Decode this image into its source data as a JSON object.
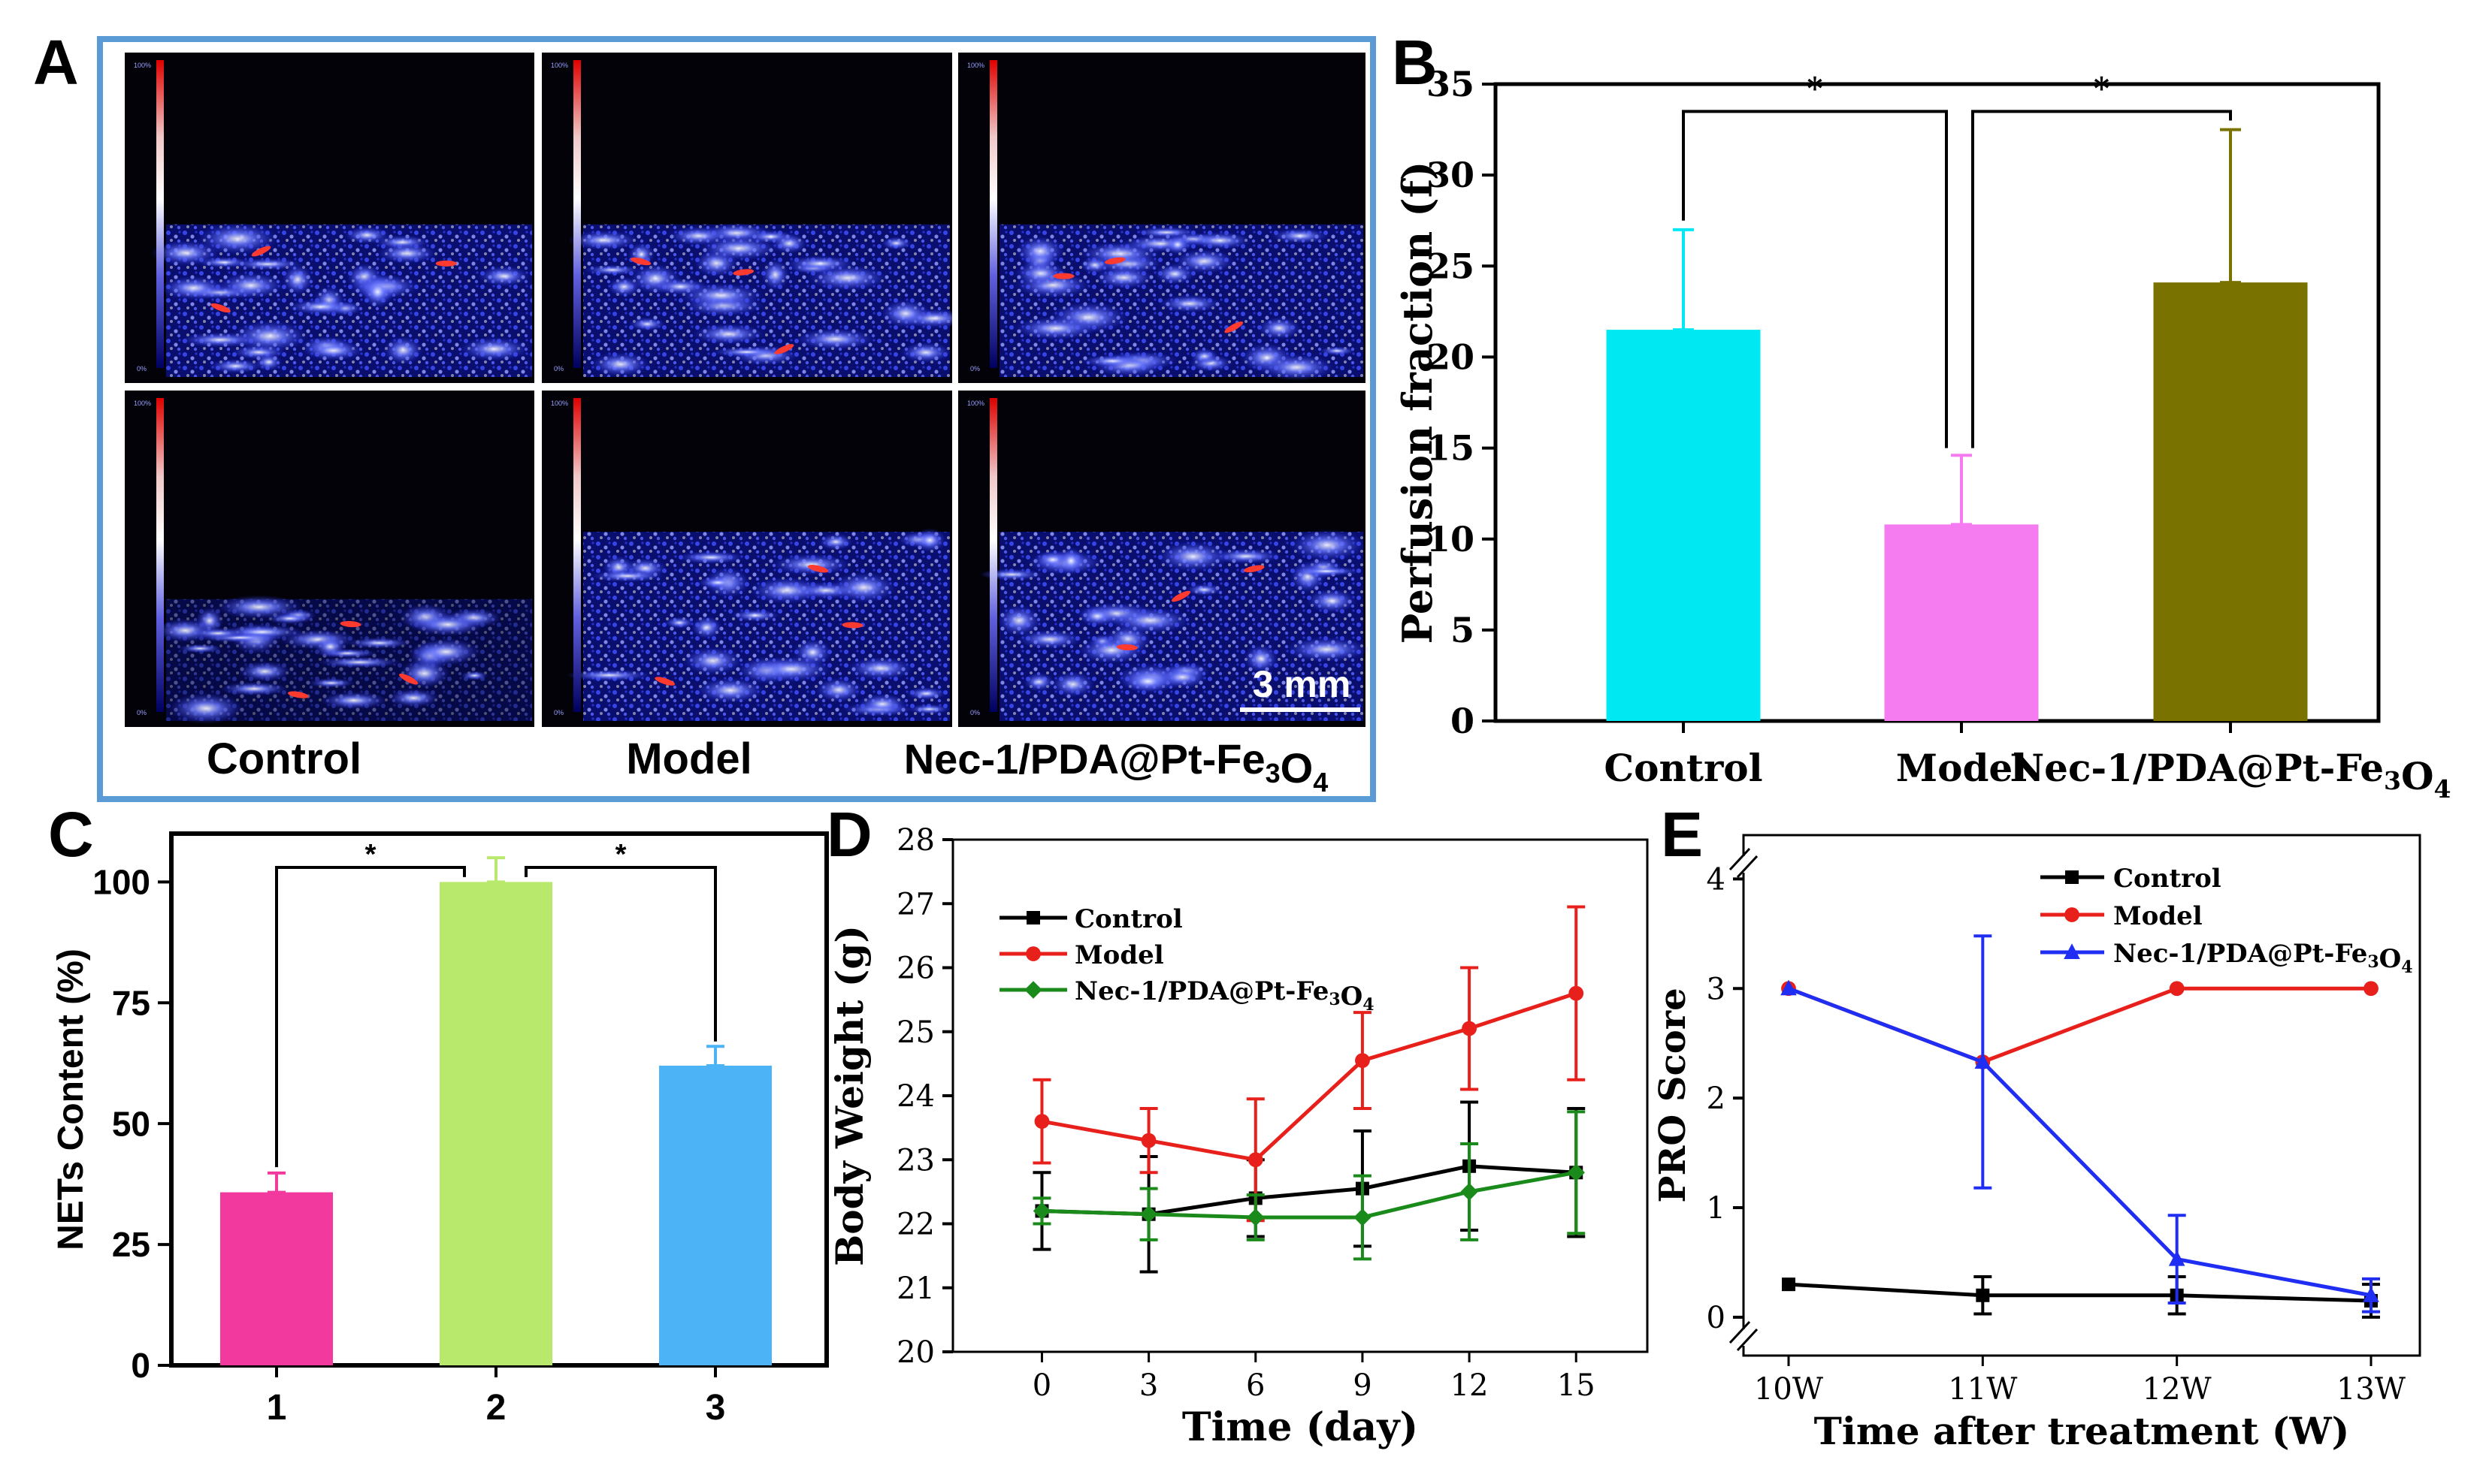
{
  "panel_letters": [
    "A",
    "B",
    "C",
    "D",
    "E"
  ],
  "panelA": {
    "column_labels": [
      "Control",
      "Model",
      "Nec-1/PDA@Pt-Fe3O4"
    ],
    "scale_bar": "3 mm",
    "colorbar_top": "100%",
    "colorbar_bottom": "0%"
  },
  "chart_data": [
    {
      "panel": "B",
      "type": "bar",
      "categories": [
        "Control",
        "Model",
        "Nec-1/PDA@Pt-Fe3O4"
      ],
      "values": [
        21.5,
        10.8,
        24.1
      ],
      "errors": [
        5.5,
        3.8,
        8.4
      ],
      "colors": [
        "#00e8f2",
        "#f47cf0",
        "#7a7200"
      ],
      "ylabel": "Perfusion fraction (f)",
      "xlabel": "",
      "ylim": [
        0,
        35
      ],
      "yticks": [
        0,
        5,
        10,
        15,
        20,
        25,
        30,
        35
      ],
      "significance": [
        {
          "from": 0,
          "to": 1,
          "label": "*"
        },
        {
          "from": 1,
          "to": 2,
          "label": "*"
        }
      ]
    },
    {
      "panel": "C",
      "type": "bar",
      "categories": [
        "1",
        "2",
        "3"
      ],
      "values": [
        35.8,
        100,
        62
      ],
      "errors": [
        4,
        5,
        4
      ],
      "colors": [
        "#f2399e",
        "#b8e96c",
        "#4db3f7"
      ],
      "ylabel": "NETs Content (%)",
      "xlabel": "",
      "ylim": [
        0,
        110
      ],
      "yticks": [
        0,
        25,
        50,
        75,
        100
      ],
      "significance": [
        {
          "from": 0,
          "to": 1,
          "label": "*"
        },
        {
          "from": 1,
          "to": 2,
          "label": "*"
        }
      ]
    },
    {
      "panel": "D",
      "type": "line",
      "x": [
        0,
        3,
        6,
        9,
        12,
        15
      ],
      "xlabel": "Time (day)",
      "ylabel": "Body Weight (g)",
      "xlim": [
        -2.5,
        17
      ],
      "ylim": [
        20,
        28
      ],
      "yticks": [
        20,
        21,
        22,
        23,
        24,
        25,
        26,
        27,
        28
      ],
      "xticks": [
        0,
        3,
        6,
        9,
        12,
        15
      ],
      "series": [
        {
          "name": "Control",
          "color": "#000000",
          "marker": "square",
          "values": [
            22.2,
            22.15,
            22.4,
            22.55,
            22.9,
            22.8
          ],
          "errors": [
            0.6,
            0.9,
            0.6,
            0.9,
            1.0,
            1.0
          ]
        },
        {
          "name": "Model",
          "color": "#e8201c",
          "marker": "circle",
          "values": [
            23.6,
            23.3,
            23.0,
            24.55,
            25.05,
            25.6
          ],
          "errors": [
            0.65,
            0.5,
            0.95,
            0.75,
            0.95,
            1.35
          ]
        },
        {
          "name": "Nec-1/PDA@Pt-Fe3O4",
          "color": "#1a8a1a",
          "marker": "diamond",
          "values": [
            22.2,
            22.15,
            22.1,
            22.1,
            22.5,
            22.8
          ],
          "errors": [
            0.2,
            0.4,
            0.35,
            0.65,
            0.75,
            0.95
          ]
        }
      ]
    },
    {
      "panel": "E",
      "type": "line",
      "categories": [
        "10W",
        "11W",
        "12W",
        "13W"
      ],
      "xlabel": "Time after treatment (W)",
      "ylabel": "PRO Score",
      "ylim": [
        -0.35,
        4.4
      ],
      "yticks": [
        0,
        1,
        2,
        3,
        4
      ],
      "axis_break": "//",
      "series": [
        {
          "name": "Control",
          "color": "#000000",
          "marker": "square",
          "values": [
            0.3,
            0.2,
            0.2,
            0.15
          ],
          "errors": [
            0.0,
            0.17,
            0.17,
            0.15
          ]
        },
        {
          "name": "Model",
          "color": "#e8201c",
          "marker": "circle",
          "values": [
            3.0,
            2.33,
            3.0,
            3.0
          ],
          "errors": [
            0,
            0,
            0,
            0
          ]
        },
        {
          "name": "Nec-1/PDA@Pt-Fe3O4",
          "color": "#1f2ef2",
          "marker": "triangle",
          "values": [
            3.0,
            2.33,
            0.53,
            0.2
          ],
          "errors": [
            0,
            1.15,
            0.4,
            0.15
          ]
        }
      ]
    }
  ]
}
